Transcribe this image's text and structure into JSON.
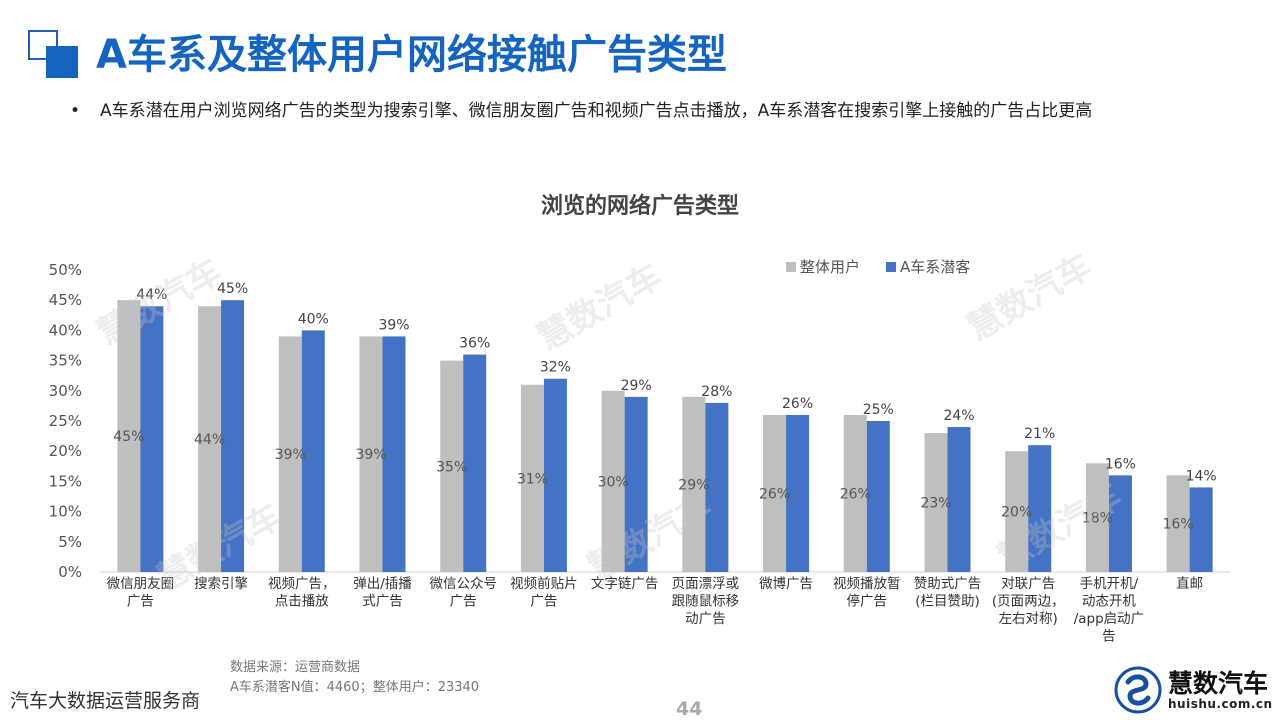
{
  "header": {
    "title": "A车系及整体用户网络接触广告类型",
    "bullet": "A车系潜在用户浏览网络广告的类型为搜索引擎、微信朋友圈广告和视频广告点击播放，A车系潜客在搜索引擎上接触的广告占比更高"
  },
  "chart_data": {
    "type": "bar",
    "title": "浏览的网络广告类型",
    "categories": [
      [
        "微信朋友圈",
        "广告"
      ],
      [
        "搜索引擎"
      ],
      [
        "视频广告，",
        "点击播放"
      ],
      [
        "弹出/插播",
        "式广告"
      ],
      [
        "微信公众号",
        "广告"
      ],
      [
        "视频前贴片",
        "广告"
      ],
      [
        "文字链广告"
      ],
      [
        "页面漂浮或",
        "跟随鼠标移",
        "动广告"
      ],
      [
        "微博广告"
      ],
      [
        "视频播放暂",
        "停广告"
      ],
      [
        "赞助式广告",
        "(栏目赞助)"
      ],
      [
        "对联广告",
        "(页面两边，",
        "左右对称)"
      ],
      [
        "手机开机/",
        "动态开机",
        "/app启动广",
        "告"
      ],
      [
        "直邮"
      ]
    ],
    "series": [
      {
        "name": "整体用户",
        "color": "#bfbfbf",
        "values": [
          45,
          44,
          39,
          39,
          35,
          31,
          30,
          29,
          26,
          26,
          23,
          20,
          18,
          16
        ]
      },
      {
        "name": "A车系潜客",
        "color": "#4472c4",
        "values": [
          44,
          45,
          40,
          39,
          36,
          32,
          29,
          28,
          26,
          25,
          24,
          21,
          16,
          14
        ]
      }
    ],
    "yticks": [
      "0%",
      "5%",
      "10%",
      "15%",
      "20%",
      "25%",
      "30%",
      "35%",
      "40%",
      "45%",
      "50%"
    ],
    "ylim": [
      0,
      50
    ],
    "legend": "top-right",
    "grid": false
  },
  "footer": {
    "source_line1": "数据来源：运营商数据",
    "source_line2": "A车系潜客N值：4460；整体用户：23340",
    "left_text": "汽车大数据运营服务商",
    "page_number": "44"
  },
  "logo": {
    "brand": "慧数汽车",
    "url": "huishu.com.cn",
    "icon": "huishu-logo-icon"
  },
  "watermark_text": "慧数汽车"
}
